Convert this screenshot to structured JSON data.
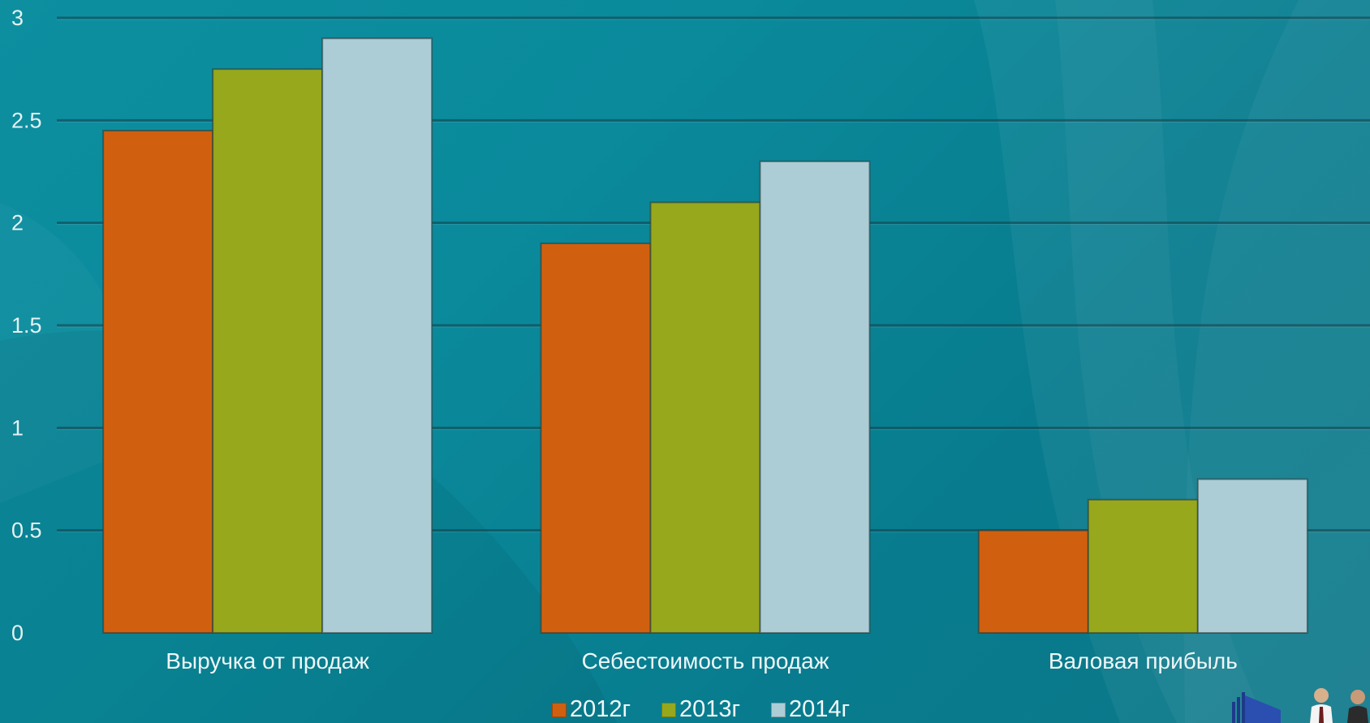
{
  "chart_data": {
    "type": "bar",
    "categories": [
      "Выручка от продаж",
      "Себестоимость продаж",
      "Валовая прибыль"
    ],
    "series": [
      {
        "name": "2012г",
        "values": [
          2.45,
          1.9,
          0.5
        ],
        "color": "#d0600f"
      },
      {
        "name": "2013г",
        "values": [
          2.75,
          2.1,
          0.65
        ],
        "color": "#97a81c"
      },
      {
        "name": "2014г",
        "values": [
          2.9,
          2.3,
          0.75
        ],
        "color": "#adcdd6"
      }
    ],
    "yticks": [
      "0",
      "0.5",
      "1",
      "1.5",
      "2",
      "2.5",
      "3"
    ],
    "ylim": [
      0,
      3
    ],
    "grid": true,
    "legend_position": "bottom"
  },
  "decor": {
    "corner_figures_icon": "people-with-building-icon"
  }
}
